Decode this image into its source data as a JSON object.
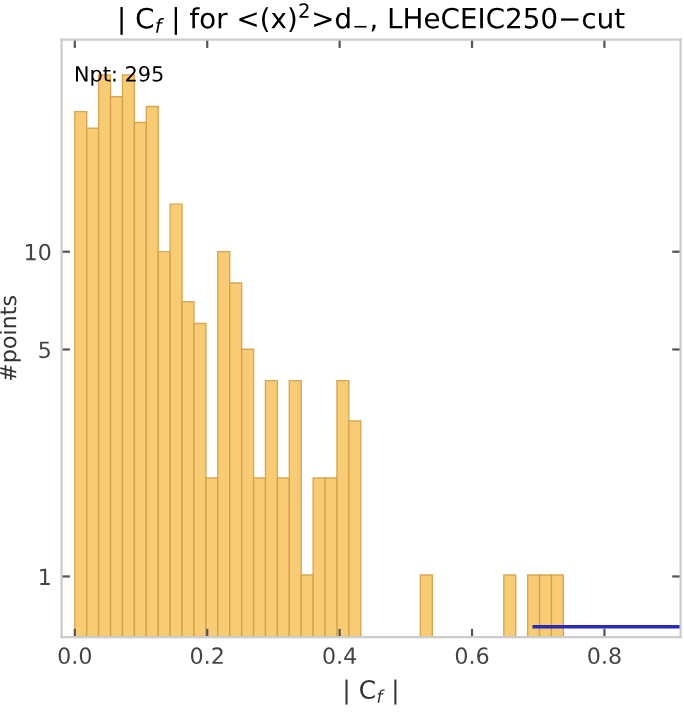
{
  "chart_data": {
    "type": "histogram",
    "title": "| C$_{f}$ | for <(x)$^{2}$>d$_{−}$, LHeCEIC250−cut",
    "xlabel": "| C$_{f}$ |",
    "ylabel": "#points",
    "bins": [
      0,
      0.018,
      0.036,
      0.054,
      0.072,
      0.09,
      0.108,
      0.126,
      0.144,
      0.162,
      0.18,
      0.198,
      0.216,
      0.234,
      0.252,
      0.27,
      0.288,
      0.306,
      0.324,
      0.342,
      0.36,
      0.378,
      0.396,
      0.414,
      0.432,
      0.45,
      0.468,
      0.486,
      0.504,
      0.522,
      0.54,
      0.558,
      0.576,
      0.594,
      0.612,
      0.63,
      0.648,
      0.666,
      0.684,
      0.702,
      0.72,
      0.738
    ],
    "values": [
      27,
      24,
      35,
      30,
      35,
      25,
      28,
      10,
      14,
      7,
      6,
      2,
      10,
      8,
      5,
      2,
      4,
      2,
      4,
      1,
      2,
      2,
      4,
      3,
      null,
      null,
      null,
      null,
      null,
      1,
      null,
      null,
      null,
      null,
      null,
      null,
      1,
      null,
      1,
      1,
      1
    ],
    "color": "#f8c96e",
    "series": [
      {
        "type": "line",
        "color": "#2a2ab8",
        "x": [
          0.694,
          0.915
        ],
        "values": [
          0.7,
          0.7
        ]
      }
    ],
    "log": true,
    "xlim": [
      -0.02,
      0.915
    ],
    "ylim": [
      0.65,
      45
    ],
    "xticks": [
      {
        "value": 0,
        "label": "0.0"
      },
      0.2,
      0.4,
      0.6,
      0.8
    ],
    "yticks": [
      1,
      5,
      10
    ],
    "annotations": [
      "Npt: 295"
    ],
    "grid": false,
    "legend": false
  }
}
